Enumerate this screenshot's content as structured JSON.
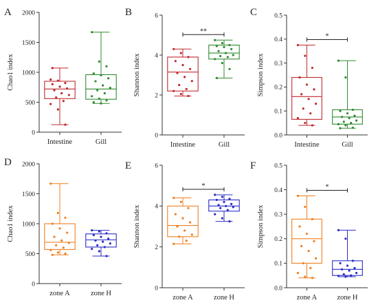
{
  "chart_data": [
    {
      "type": "box",
      "letter": "A",
      "ylabel": "Chao1 index",
      "ylim": [
        0,
        2000
      ],
      "yticks": [
        0,
        500,
        1000,
        1500,
        2000
      ],
      "categories": [
        "Intestine",
        "Gill"
      ],
      "colors": [
        "#c0292f",
        "#2f8a2f"
      ],
      "boxes": [
        {
          "min": 125,
          "q1": 560,
          "median": 720,
          "q3": 850,
          "max": 1070
        },
        {
          "min": 480,
          "q1": 550,
          "median": 720,
          "q3": 960,
          "max": 1670
        }
      ],
      "points": [
        [
          880,
          860,
          820,
          800,
          760,
          730,
          700,
          650,
          620,
          580,
          520,
          470,
          380,
          125,
          1070
        ],
        [
          1670,
          1180,
          1100,
          980,
          950,
          900,
          850,
          780,
          740,
          700,
          650,
          600,
          560,
          530,
          500,
          480
        ]
      ],
      "significance": ""
    },
    {
      "type": "box",
      "letter": "B",
      "ylabel": "Shannon index",
      "ylim": [
        0,
        6
      ],
      "yticks": [
        0,
        2,
        4,
        6
      ],
      "categories": [
        "Intestine",
        "Gill"
      ],
      "colors": [
        "#c0292f",
        "#2f8a2f"
      ],
      "boxes": [
        {
          "min": 1.95,
          "q1": 2.2,
          "median": 3.15,
          "q3": 3.9,
          "max": 4.3
        },
        {
          "min": 2.85,
          "q1": 3.8,
          "median": 4.1,
          "q3": 4.5,
          "max": 4.75
        }
      ],
      "points": [
        [
          4.3,
          4.1,
          3.9,
          3.7,
          3.5,
          3.3,
          3.1,
          2.9,
          2.7,
          2.5,
          2.3,
          2.2,
          2.05,
          1.95
        ],
        [
          4.75,
          4.6,
          4.5,
          4.45,
          4.4,
          4.3,
          4.2,
          4.1,
          4.0,
          3.95,
          3.9,
          3.8,
          3.6,
          3.3,
          2.85
        ]
      ],
      "significance": "**"
    },
    {
      "type": "box",
      "letter": "C",
      "ylabel": "Simpson index",
      "ylim": [
        0,
        0.5
      ],
      "yticks": [
        0.0,
        0.1,
        0.2,
        0.3,
        0.4,
        0.5
      ],
      "categories": [
        "Intestine",
        "Gill"
      ],
      "colors": [
        "#c0292f",
        "#2f8a2f"
      ],
      "boxes": [
        {
          "min": 0.04,
          "q1": 0.065,
          "median": 0.16,
          "q3": 0.24,
          "max": 0.375
        },
        {
          "min": 0.028,
          "q1": 0.045,
          "median": 0.075,
          "q3": 0.105,
          "max": 0.31
        }
      ],
      "points": [
        [
          0.375,
          0.33,
          0.28,
          0.24,
          0.21,
          0.19,
          0.17,
          0.15,
          0.13,
          0.11,
          0.09,
          0.07,
          0.05,
          0.04
        ],
        [
          0.31,
          0.24,
          0.105,
          0.1,
          0.09,
          0.08,
          0.075,
          0.07,
          0.06,
          0.055,
          0.05,
          0.045,
          0.04,
          0.03,
          0.028
        ]
      ],
      "significance": "*"
    },
    {
      "type": "box",
      "letter": "D",
      "ylabel": "Chao1 index",
      "ylim": [
        0,
        2000
      ],
      "yticks": [
        0,
        500,
        1000,
        1500,
        2000
      ],
      "categories": [
        "zone A",
        "zone H"
      ],
      "colors": [
        "#f07f1f",
        "#2b2bc7"
      ],
      "boxes": [
        {
          "min": 480,
          "q1": 570,
          "median": 690,
          "q3": 1000,
          "max": 1670
        },
        {
          "min": 460,
          "q1": 610,
          "median": 730,
          "q3": 830,
          "max": 890
        }
      ],
      "points": [
        [
          1670,
          1180,
          1100,
          1000,
          920,
          850,
          780,
          720,
          680,
          640,
          600,
          560,
          520,
          500,
          480
        ],
        [
          890,
          870,
          840,
          810,
          780,
          750,
          720,
          700,
          670,
          640,
          610,
          580,
          540,
          460
        ]
      ],
      "significance": ""
    },
    {
      "type": "box",
      "letter": "E",
      "ylabel": "Shannon index",
      "ylim": [
        0,
        6
      ],
      "yticks": [
        0,
        2,
        4,
        6
      ],
      "categories": [
        "zone A",
        "zone H"
      ],
      "colors": [
        "#f07f1f",
        "#2b2bc7"
      ],
      "boxes": [
        {
          "min": 2.15,
          "q1": 2.5,
          "median": 3.05,
          "q3": 4.0,
          "max": 4.4
        },
        {
          "min": 3.25,
          "q1": 3.75,
          "median": 4.0,
          "q3": 4.3,
          "max": 4.55
        }
      ],
      "points": [
        [
          4.4,
          4.2,
          3.9,
          3.6,
          3.4,
          3.2,
          3.0,
          2.8,
          2.6,
          2.5,
          2.3,
          2.15
        ],
        [
          4.55,
          4.45,
          4.35,
          4.3,
          4.2,
          4.1,
          4.05,
          4.0,
          3.95,
          3.9,
          3.8,
          3.6,
          3.4,
          3.25
        ]
      ],
      "significance": "*"
    },
    {
      "type": "box",
      "letter": "F",
      "ylabel": "Simpson index",
      "ylim": [
        0,
        0.5
      ],
      "yticks": [
        0.0,
        0.1,
        0.2,
        0.3,
        0.4,
        0.5
      ],
      "categories": [
        "zone A",
        "zone H"
      ],
      "colors": [
        "#f07f1f",
        "#2b2bc7"
      ],
      "boxes": [
        {
          "min": 0.04,
          "q1": 0.1,
          "median": 0.2,
          "q3": 0.28,
          "max": 0.375
        },
        {
          "min": 0.045,
          "q1": 0.05,
          "median": 0.075,
          "q3": 0.11,
          "max": 0.235
        }
      ],
      "points": [
        [
          0.375,
          0.33,
          0.28,
          0.25,
          0.22,
          0.19,
          0.17,
          0.15,
          0.12,
          0.1,
          0.08,
          0.06,
          0.045,
          0.04
        ],
        [
          0.235,
          0.2,
          0.11,
          0.1,
          0.09,
          0.08,
          0.075,
          0.07,
          0.06,
          0.055,
          0.05,
          0.048,
          0.045
        ]
      ],
      "significance": "*"
    }
  ]
}
